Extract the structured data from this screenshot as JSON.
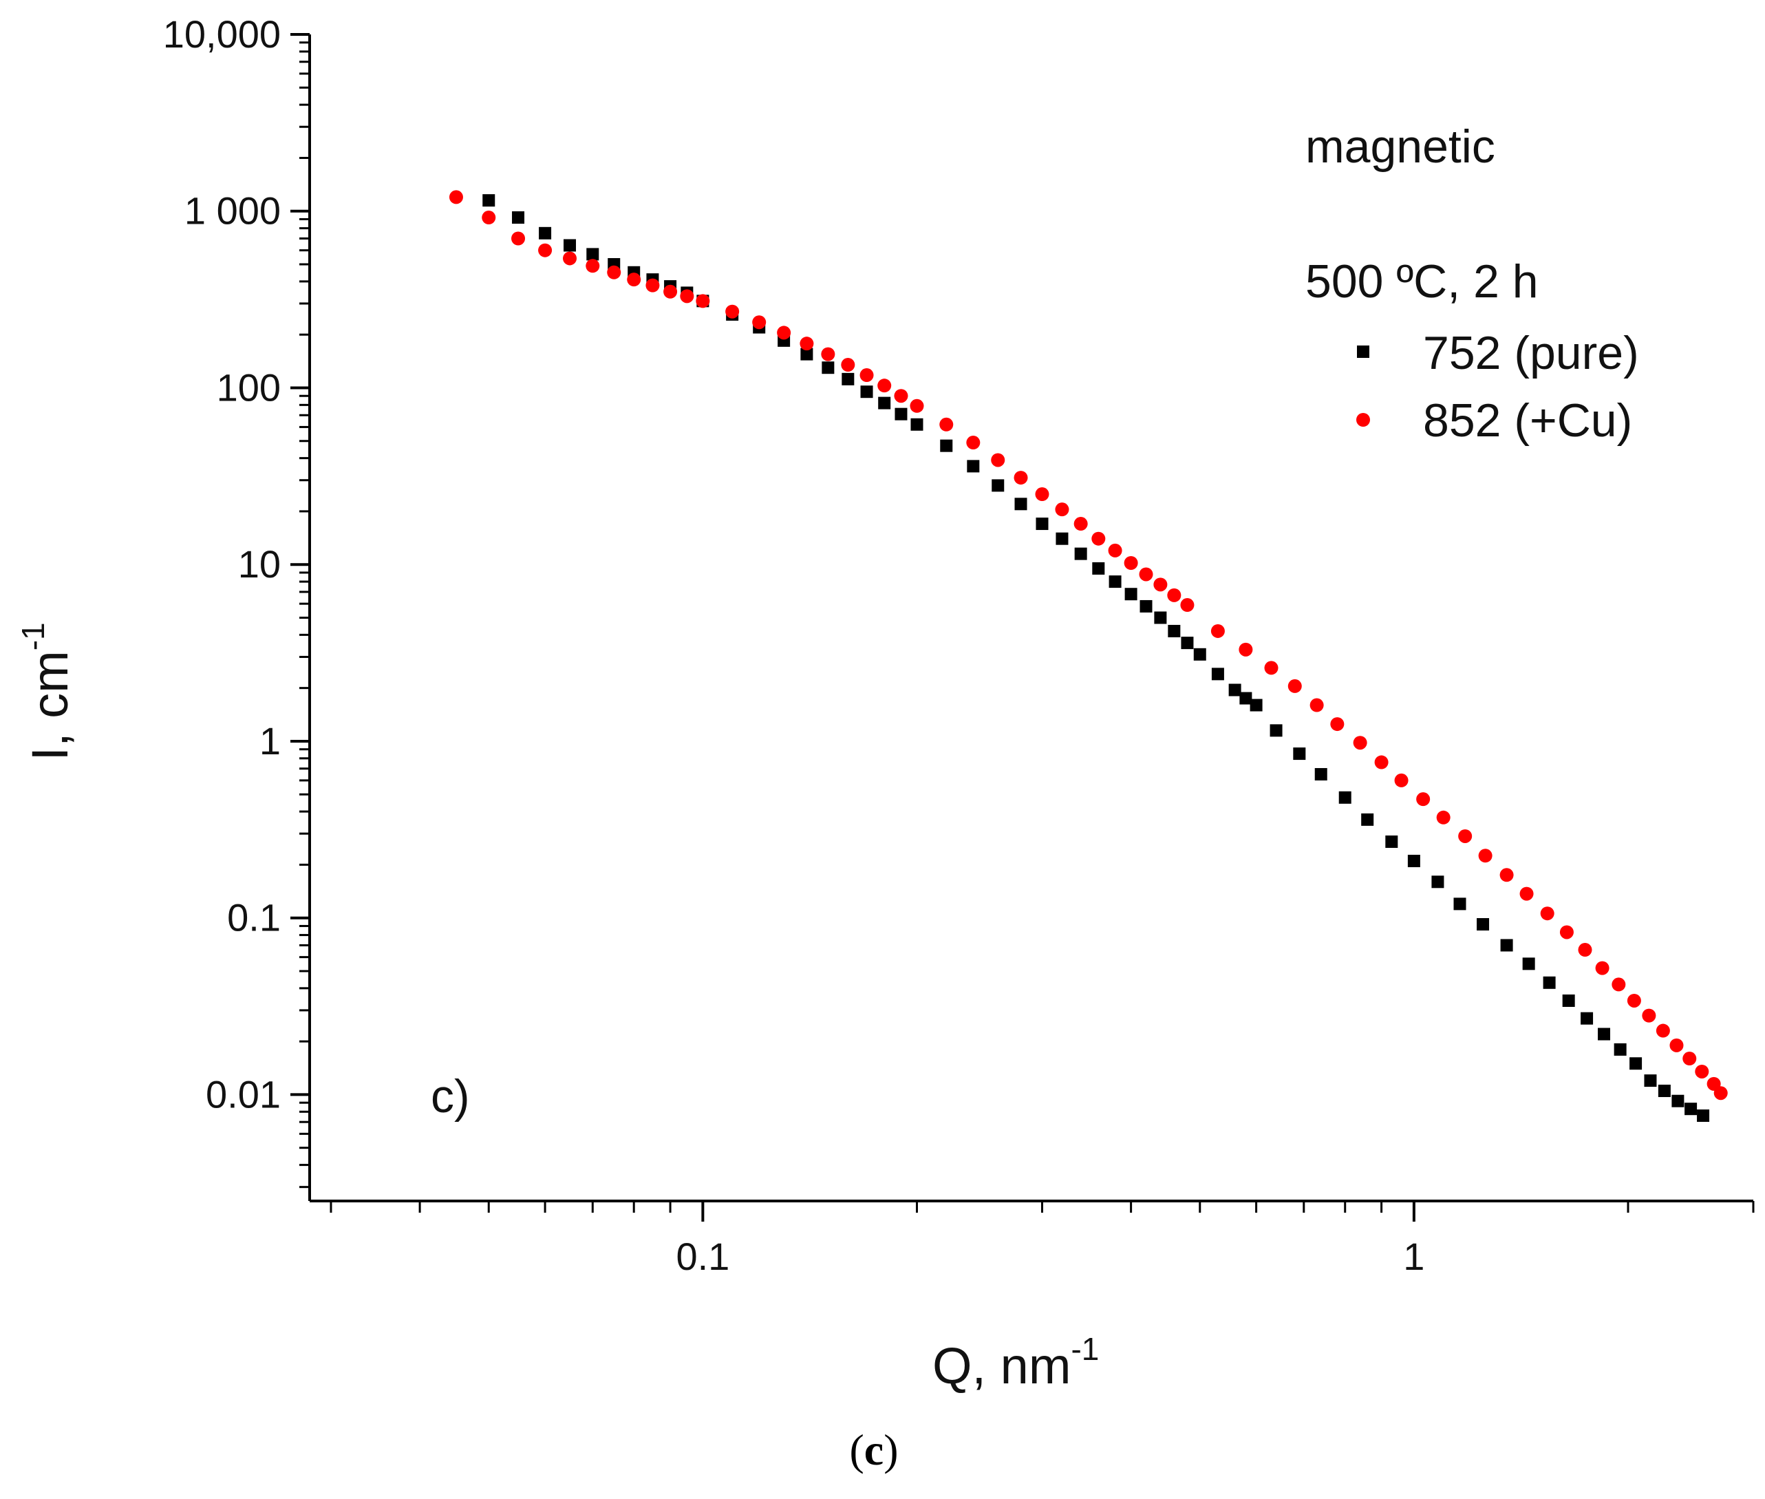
{
  "chart_data": {
    "type": "scatter",
    "xscale": "log",
    "yscale": "log",
    "xlim": [
      0.028,
      3.0
    ],
    "ylim": [
      0.0025,
      10000
    ],
    "xlabel": "Q, nm",
    "xlabel_sup": "-1",
    "ylabel": "I, cm",
    "ylabel_sup": "-1",
    "x_ticks": [
      {
        "value": 0.1,
        "label": "0.1"
      },
      {
        "value": 1,
        "label": "1"
      }
    ],
    "y_ticks": [
      {
        "value": 10000,
        "label": "10,000"
      },
      {
        "value": 1000,
        "label": "1 000"
      },
      {
        "value": 100,
        "label": "100"
      },
      {
        "value": 10,
        "label": "10"
      },
      {
        "value": 1,
        "label": "1"
      },
      {
        "value": 0.1,
        "label": "0.1"
      },
      {
        "value": 0.01,
        "label": "0.01"
      }
    ],
    "legend_title_1": "magnetic",
    "legend_title_2": "500 ºC, 2 h",
    "panel_label": "c)",
    "series": [
      {
        "name": "752 (pure)",
        "marker": "square",
        "color": "#000000",
        "points": [
          [
            0.05,
            1150
          ],
          [
            0.055,
            920
          ],
          [
            0.06,
            750
          ],
          [
            0.065,
            640
          ],
          [
            0.07,
            570
          ],
          [
            0.075,
            500
          ],
          [
            0.08,
            450
          ],
          [
            0.085,
            410
          ],
          [
            0.09,
            375
          ],
          [
            0.095,
            345
          ],
          [
            0.1,
            310
          ],
          [
            0.11,
            260
          ],
          [
            0.12,
            220
          ],
          [
            0.13,
            185
          ],
          [
            0.14,
            155
          ],
          [
            0.15,
            130
          ],
          [
            0.16,
            112
          ],
          [
            0.17,
            95
          ],
          [
            0.18,
            82
          ],
          [
            0.19,
            71
          ],
          [
            0.2,
            62
          ],
          [
            0.22,
            47
          ],
          [
            0.24,
            36
          ],
          [
            0.26,
            28
          ],
          [
            0.28,
            22
          ],
          [
            0.3,
            17
          ],
          [
            0.32,
            14
          ],
          [
            0.34,
            11.5
          ],
          [
            0.36,
            9.5
          ],
          [
            0.38,
            8
          ],
          [
            0.4,
            6.8
          ],
          [
            0.42,
            5.8
          ],
          [
            0.44,
            5
          ],
          [
            0.46,
            4.2
          ],
          [
            0.48,
            3.6
          ],
          [
            0.5,
            3.1
          ],
          [
            0.53,
            2.4
          ],
          [
            0.56,
            1.95
          ],
          [
            0.58,
            1.75
          ],
          [
            0.6,
            1.6
          ],
          [
            0.64,
            1.15
          ],
          [
            0.69,
            0.85
          ],
          [
            0.74,
            0.65
          ],
          [
            0.8,
            0.48
          ],
          [
            0.86,
            0.36
          ],
          [
            0.93,
            0.27
          ],
          [
            1.0,
            0.21
          ],
          [
            1.08,
            0.16
          ],
          [
            1.16,
            0.12
          ],
          [
            1.25,
            0.092
          ],
          [
            1.35,
            0.07
          ],
          [
            1.45,
            0.055
          ],
          [
            1.55,
            0.043
          ],
          [
            1.65,
            0.034
          ],
          [
            1.75,
            0.027
          ],
          [
            1.85,
            0.022
          ],
          [
            1.95,
            0.018
          ],
          [
            2.05,
            0.015
          ],
          [
            2.15,
            0.012
          ],
          [
            2.25,
            0.0105
          ],
          [
            2.35,
            0.0092
          ],
          [
            2.45,
            0.0083
          ],
          [
            2.55,
            0.0076
          ]
        ]
      },
      {
        "name": "852 (+Cu)",
        "marker": "circle",
        "color": "#ff0000",
        "points": [
          [
            0.045,
            1200
          ],
          [
            0.05,
            920
          ],
          [
            0.055,
            700
          ],
          [
            0.06,
            600
          ],
          [
            0.065,
            540
          ],
          [
            0.07,
            490
          ],
          [
            0.075,
            450
          ],
          [
            0.08,
            410
          ],
          [
            0.085,
            380
          ],
          [
            0.09,
            350
          ],
          [
            0.095,
            330
          ],
          [
            0.1,
            310
          ],
          [
            0.11,
            270
          ],
          [
            0.12,
            235
          ],
          [
            0.13,
            205
          ],
          [
            0.14,
            178
          ],
          [
            0.15,
            155
          ],
          [
            0.16,
            135
          ],
          [
            0.17,
            118
          ],
          [
            0.18,
            103
          ],
          [
            0.19,
            90
          ],
          [
            0.2,
            79
          ],
          [
            0.22,
            62
          ],
          [
            0.24,
            49
          ],
          [
            0.26,
            39
          ],
          [
            0.28,
            31
          ],
          [
            0.3,
            25
          ],
          [
            0.32,
            20.5
          ],
          [
            0.34,
            17
          ],
          [
            0.36,
            14
          ],
          [
            0.38,
            12
          ],
          [
            0.4,
            10.2
          ],
          [
            0.42,
            8.8
          ],
          [
            0.44,
            7.7
          ],
          [
            0.46,
            6.7
          ],
          [
            0.48,
            5.9
          ],
          [
            0.53,
            4.2
          ],
          [
            0.58,
            3.3
          ],
          [
            0.63,
            2.6
          ],
          [
            0.68,
            2.05
          ],
          [
            0.73,
            1.6
          ],
          [
            0.78,
            1.25
          ],
          [
            0.84,
            0.98
          ],
          [
            0.9,
            0.76
          ],
          [
            0.96,
            0.6
          ],
          [
            1.03,
            0.47
          ],
          [
            1.1,
            0.37
          ],
          [
            1.18,
            0.29
          ],
          [
            1.26,
            0.225
          ],
          [
            1.35,
            0.175
          ],
          [
            1.44,
            0.137
          ],
          [
            1.54,
            0.106
          ],
          [
            1.64,
            0.083
          ],
          [
            1.74,
            0.066
          ],
          [
            1.84,
            0.052
          ],
          [
            1.94,
            0.042
          ],
          [
            2.04,
            0.034
          ],
          [
            2.14,
            0.028
          ],
          [
            2.24,
            0.023
          ],
          [
            2.34,
            0.019
          ],
          [
            2.44,
            0.016
          ],
          [
            2.54,
            0.0135
          ],
          [
            2.64,
            0.0115
          ],
          [
            2.7,
            0.0102
          ]
        ]
      }
    ]
  },
  "caption": {
    "open": "(",
    "letter": "c",
    "close": ")"
  }
}
